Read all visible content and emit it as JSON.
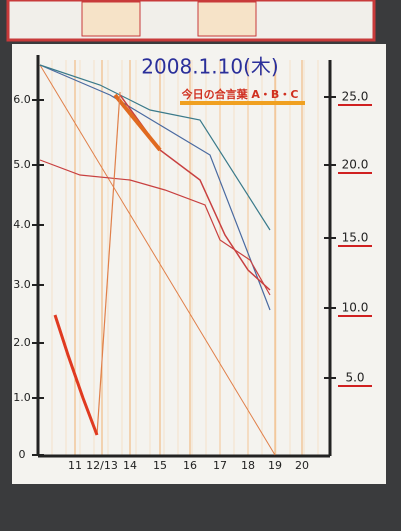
{
  "poster": {
    "title": "2008.1.10(木)",
    "subtitle": "今日の合言葉 A・B・C",
    "left_ticks": [
      "6.0",
      "5.0",
      "4.0",
      "3.0",
      "2.0",
      "1.0",
      "0"
    ],
    "right_ticks": [
      "25.0",
      "20.0",
      "15.0",
      "10.0",
      "5.0"
    ],
    "x_labels": [
      "11",
      "12/13",
      "14",
      "15",
      "16",
      "17",
      "18",
      "19",
      "20"
    ]
  }
}
